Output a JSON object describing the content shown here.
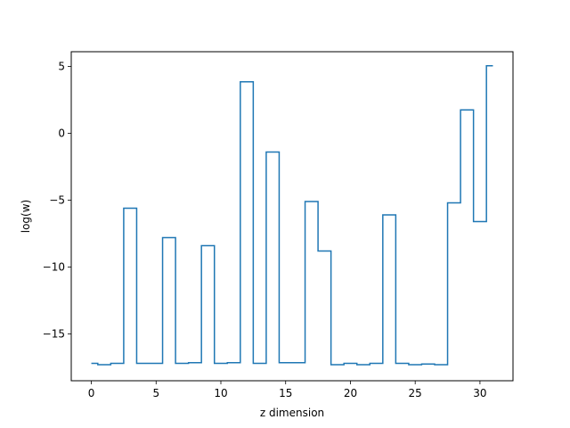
{
  "chart_data": {
    "type": "line",
    "drawstyle": "steps-mid",
    "title": "",
    "xlabel": "z dimension",
    "ylabel": "log(w)",
    "xlim": [
      -1.55,
      32.55
    ],
    "ylim": [
      -18.5,
      6.1
    ],
    "xticks": [
      0,
      5,
      10,
      15,
      20,
      25,
      30
    ],
    "xtick_labels": [
      "0",
      "5",
      "10",
      "15",
      "20",
      "25",
      "30"
    ],
    "yticks": [
      -15,
      -10,
      -5,
      0,
      5
    ],
    "ytick_labels": [
      "−15",
      "−10",
      "−5",
      "0",
      "5"
    ],
    "grid": false,
    "color": "#1f77b4",
    "series": [
      {
        "x": [
          0,
          1,
          2,
          3,
          4,
          5,
          6,
          7,
          8,
          9,
          10,
          11,
          12,
          13,
          14,
          15,
          16,
          17,
          18,
          19,
          20,
          21,
          22,
          23,
          24,
          25,
          26,
          27,
          28,
          29,
          30,
          31
        ],
        "values": [
          -17.2,
          -17.3,
          -17.2,
          -5.6,
          -17.2,
          -17.2,
          -7.8,
          -17.2,
          -17.15,
          -8.4,
          -17.2,
          -17.15,
          3.85,
          -17.2,
          -1.4,
          -17.15,
          -17.15,
          -5.1,
          -8.8,
          -17.3,
          -17.2,
          -17.3,
          -17.2,
          -6.1,
          -17.2,
          -17.3,
          -17.25,
          -17.3,
          -5.2,
          1.75,
          -6.6,
          5.05
        ]
      }
    ]
  }
}
